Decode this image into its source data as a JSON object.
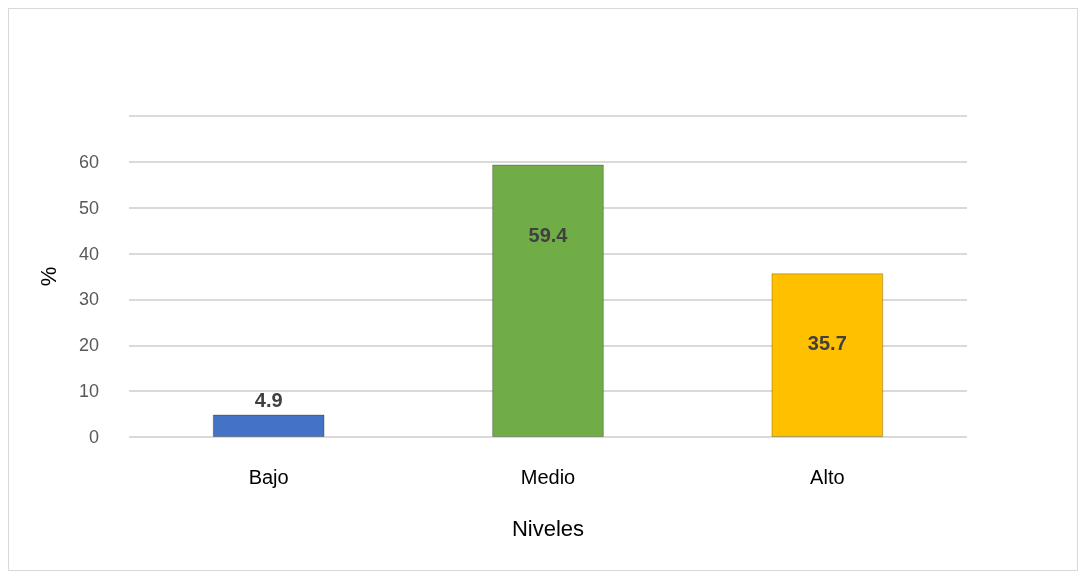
{
  "chart_data": {
    "type": "bar",
    "xlabel": "Niveles",
    "ylabel": "%",
    "categories": [
      "Bajo",
      "Medio",
      "Alto"
    ],
    "values": [
      4.9,
      59.4,
      35.7
    ],
    "colors": [
      "#4472c4",
      "#70ad47",
      "#ffc000"
    ],
    "ylim": [
      0,
      70
    ],
    "yticks": [
      0,
      10,
      20,
      30,
      40,
      50,
      60,
      {
        "value": 70,
        "label": null
      }
    ],
    "grid": true,
    "data_labels": true
  }
}
